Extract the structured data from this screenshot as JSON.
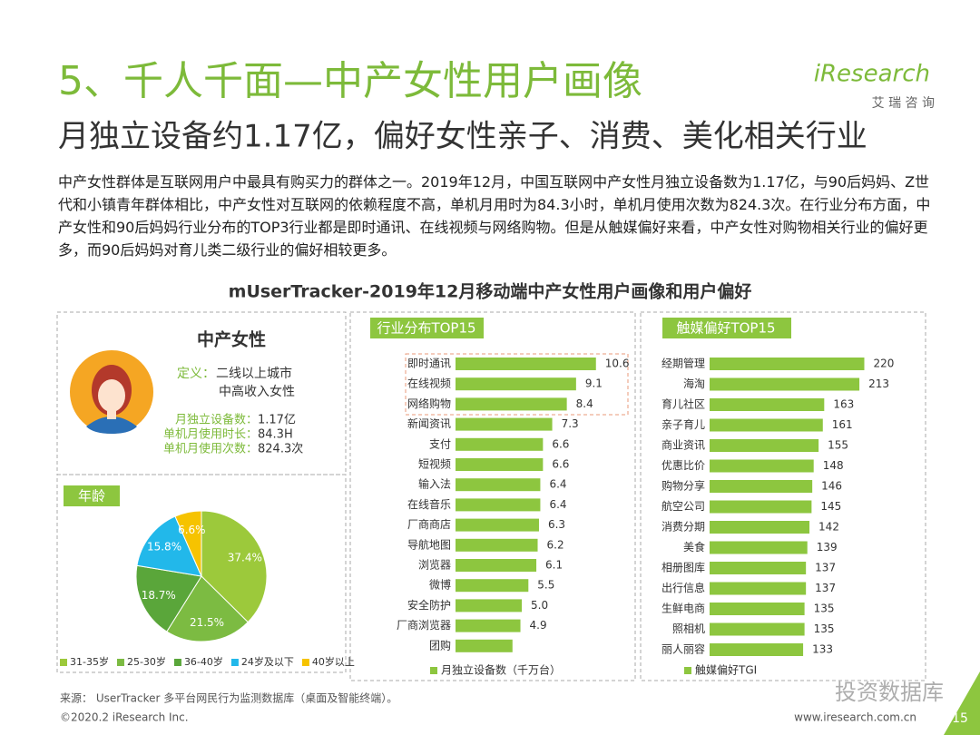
{
  "header": {
    "title": "5、千人千面—中产女性用户画像",
    "subtitle": "月独立设备约1.17亿，偏好女性亲子、消费、美化相关行业",
    "paragraph": "中产女性群体是互联网用户中最具有购买力的群体之一。2019年12月，中国互联网中产女性月独立设备数为1.17亿，与90后妈妈、Z世代和小镇青年群体相比，中产女性对互联网的依赖程度不高，单机月用时为84.3小时，单机月使用次数为824.3次。在行业分布方面，中产女性和90后妈妈行业分布的TOP3行业都是即时通讯、在线视频与网络购物。但是从触媒偏好来看，中产女性对购物相关行业的偏好更多，而90后妈妈对育儿类二级行业的偏好相较更多。"
  },
  "logo": {
    "brand": "iResearch",
    "cn": "艾 瑞 咨 询"
  },
  "section_title": "mUserTracker-2019年12月移动端中产女性用户画像和用户偏好",
  "profile": {
    "title": "中产女性",
    "definition_label": "定义：",
    "definition": [
      "二线以上城市",
      "中高收入女性"
    ],
    "stats": [
      {
        "label": "月独立设备数：",
        "value": "1.17亿"
      },
      {
        "label": "单机月使用时长：",
        "value": "84.3H"
      },
      {
        "label": "单机月使用次数：",
        "value": "824.3次"
      }
    ]
  },
  "chart_data": [
    {
      "type": "pie",
      "title": "年龄",
      "categories": [
        "31-35岁",
        "25-30岁",
        "36-40岁",
        "24岁及以下",
        "40岁以上"
      ],
      "values": [
        37.4,
        21.5,
        18.7,
        15.8,
        6.6
      ],
      "value_labels": [
        "37.4%",
        "21.5%",
        "18.7%",
        "15.8%",
        "6.6%"
      ],
      "colors": [
        "#9cc93b",
        "#7cbb42",
        "#5aa63a",
        "#22b8ea",
        "#f6c300"
      ]
    },
    {
      "type": "bar",
      "title": "行业分布TOP15",
      "categories": [
        "即时通讯",
        "在线视频",
        "网络购物",
        "新闻资讯",
        "支付",
        "短视频",
        "输入法",
        "在线音乐",
        "厂商商店",
        "导航地图",
        "浏览器",
        "微博",
        "安全防护",
        "厂商浏览器",
        "团购"
      ],
      "series": [
        {
          "name": "月独立设备数（千万台）",
          "color": "#8dc63f",
          "values": [
            10.6,
            9.1,
            8.4,
            7.3,
            6.6,
            6.6,
            6.4,
            6.4,
            6.3,
            6.2,
            6.1,
            5.5,
            5.0,
            4.9,
            4.3
          ],
          "value_labels": [
            "10.6",
            "9.1",
            "8.4",
            "7.3",
            "6.6",
            "6.6",
            "6.4",
            "6.4",
            "6.3",
            "6.2",
            "6.1",
            "5.5",
            "5.0",
            "4.9",
            null
          ]
        }
      ]
    },
    {
      "type": "bar",
      "title": "触媒偏好TOP15",
      "categories": [
        "经期管理",
        "海淘",
        "育儿社区",
        "亲子育儿",
        "商业资讯",
        "优惠比价",
        "购物分享",
        "航空公司",
        "消费分期",
        "美食",
        "相册图库",
        "出行信息",
        "生鲜电商",
        "照相机",
        "丽人丽容"
      ],
      "series": [
        {
          "name": "触媒偏好TGI",
          "color": "#8dc63f",
          "values": [
            220,
            213,
            163,
            161,
            155,
            148,
            146,
            145,
            142,
            139,
            137,
            137,
            135,
            135,
            133
          ]
        }
      ]
    }
  ],
  "footer": {
    "source": "来源： UserTracker 多平台网民行为监测数据库（桌面及智能终端）。",
    "copyright": "©2020.2 iResearch Inc.",
    "url": "www.iresearch.com.cn",
    "page": "15"
  },
  "watermark": "投资数据库"
}
